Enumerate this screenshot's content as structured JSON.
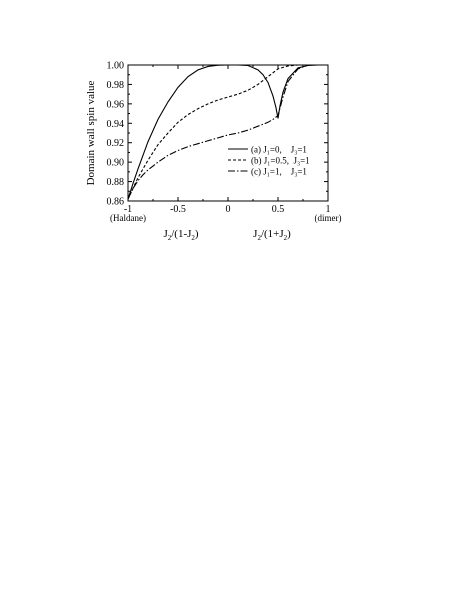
{
  "chart_data": {
    "type": "line",
    "title": "",
    "ylabel": "Domain wall spin value",
    "xlabel_left": "J₂/(1-J₂)",
    "xlabel_right": "J₂/(1+J₂)",
    "xlim": [
      -1,
      1
    ],
    "ylim": [
      0.86,
      1.0
    ],
    "x_ticks": [
      -1,
      -0.5,
      0,
      0.5,
      1
    ],
    "x_tick_labels": [
      "-1",
      "-0.5",
      "0",
      "0.5",
      "1"
    ],
    "x_end_annotations": {
      "left": "(Haldane)",
      "right": "(dimer)"
    },
    "y_ticks": [
      0.86,
      0.88,
      0.9,
      0.92,
      0.94,
      0.96,
      0.98,
      1.0
    ],
    "y_tick_labels": [
      "0.86",
      "0.88",
      "0.90",
      "0.92",
      "0.94",
      "0.96",
      "0.98",
      "1.00"
    ],
    "grid": false,
    "legend_position": "lower-right",
    "series": [
      {
        "name": "(a) J₁=0,    J₃=1",
        "style": "solid",
        "x": [
          -1,
          -0.95,
          -0.9,
          -0.8,
          -0.7,
          -0.6,
          -0.5,
          -0.4,
          -0.3,
          -0.2,
          -0.1,
          0,
          0.1,
          0.2,
          0.3,
          0.35,
          0.4,
          0.45,
          0.48,
          0.5,
          0.52,
          0.55,
          0.6,
          0.7,
          0.8,
          0.9,
          1
        ],
        "values": [
          0.862,
          0.878,
          0.893,
          0.921,
          0.944,
          0.962,
          0.977,
          0.988,
          0.995,
          0.9985,
          0.9998,
          1.0,
          1.0,
          0.9995,
          0.995,
          0.99,
          0.982,
          0.968,
          0.956,
          0.945,
          0.958,
          0.972,
          0.986,
          0.997,
          0.9995,
          1.0,
          1.0
        ]
      },
      {
        "name": "(b) J₁=0.5,  J₃=1",
        "style": "dashed",
        "x": [
          -1,
          -0.9,
          -0.8,
          -0.7,
          -0.6,
          -0.5,
          -0.4,
          -0.3,
          -0.2,
          -0.1,
          0,
          0.1,
          0.2,
          0.3,
          0.4,
          0.5,
          0.6,
          0.7,
          0.8,
          0.9,
          1
        ],
        "values": [
          0.862,
          0.884,
          0.902,
          0.918,
          0.93,
          0.941,
          0.949,
          0.955,
          0.96,
          0.964,
          0.967,
          0.97,
          0.974,
          0.98,
          0.988,
          0.996,
          0.999,
          1.0,
          1.0,
          1.0,
          1.0
        ]
      },
      {
        "name": "(c) J₁=1,    J₃=1",
        "style": "dash-dot",
        "x": [
          -1,
          -0.95,
          -0.9,
          -0.85,
          -0.8,
          -0.7,
          -0.6,
          -0.5,
          -0.4,
          -0.3,
          -0.2,
          -0.1,
          0,
          0.1,
          0.2,
          0.3,
          0.4,
          0.45,
          0.5,
          0.55,
          0.6,
          0.7,
          0.8,
          0.9,
          1
        ],
        "values": [
          0.862,
          0.873,
          0.881,
          0.887,
          0.892,
          0.9,
          0.907,
          0.912,
          0.916,
          0.919,
          0.922,
          0.925,
          0.928,
          0.93,
          0.933,
          0.937,
          0.941,
          0.944,
          0.948,
          0.967,
          0.983,
          0.996,
          1.0,
          1.0,
          1.0
        ]
      }
    ]
  }
}
